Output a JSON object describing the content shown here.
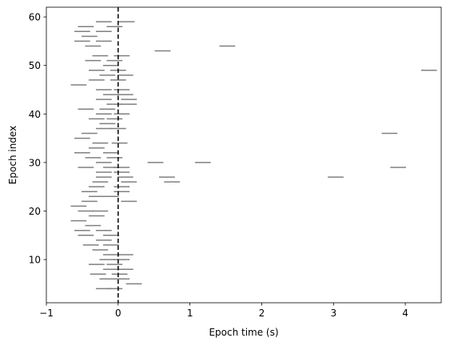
{
  "chart_data": {
    "type": "scatter",
    "marker": "horizontal-segment",
    "xlabel": "Epoch time (s)",
    "ylabel": "Epoch index",
    "xlim": [
      -1,
      4.5
    ],
    "ylim": [
      1.1,
      62
    ],
    "xticks": [
      -1,
      0,
      1,
      2,
      3,
      4
    ],
    "yticks": [
      10,
      20,
      30,
      40,
      50,
      60
    ],
    "grid": false,
    "reference_line": {
      "x": 0,
      "style": "dashed",
      "color": "#000000"
    },
    "segment_color": "#808080",
    "segment_half_width": 0.11,
    "series": [
      {
        "values": [
          {
            "x": -0.2,
            "y": 4
          },
          {
            "x": -0.05,
            "y": 4
          },
          {
            "x": 0.22,
            "y": 5
          },
          {
            "x": -0.15,
            "y": 6
          },
          {
            "x": 0.05,
            "y": 6
          },
          {
            "x": -0.28,
            "y": 7
          },
          {
            "x": 0.02,
            "y": 7
          },
          {
            "x": -0.1,
            "y": 8
          },
          {
            "x": 0.1,
            "y": 8
          },
          {
            "x": -0.3,
            "y": 9
          },
          {
            "x": -0.05,
            "y": 9
          },
          {
            "x": -0.15,
            "y": 10
          },
          {
            "x": 0.05,
            "y": 10
          },
          {
            "x": -0.1,
            "y": 11
          },
          {
            "x": 0.1,
            "y": 11
          },
          {
            "x": -0.25,
            "y": 12
          },
          {
            "x": -0.38,
            "y": 13
          },
          {
            "x": -0.1,
            "y": 13
          },
          {
            "x": -0.2,
            "y": 14
          },
          {
            "x": -0.45,
            "y": 15
          },
          {
            "x": -0.1,
            "y": 15
          },
          {
            "x": -0.5,
            "y": 16
          },
          {
            "x": -0.2,
            "y": 16
          },
          {
            "x": -0.35,
            "y": 17
          },
          {
            "x": -0.55,
            "y": 18
          },
          {
            "x": -0.3,
            "y": 19
          },
          {
            "x": -0.45,
            "y": 20
          },
          {
            "x": -0.25,
            "y": 20
          },
          {
            "x": -0.55,
            "y": 21
          },
          {
            "x": -0.4,
            "y": 22
          },
          {
            "x": 0.15,
            "y": 22
          },
          {
            "x": -0.3,
            "y": 23
          },
          {
            "x": -0.1,
            "y": 23
          },
          {
            "x": -0.4,
            "y": 24
          },
          {
            "x": 0.05,
            "y": 24
          },
          {
            "x": -0.3,
            "y": 25
          },
          {
            "x": 0.05,
            "y": 25
          },
          {
            "x": -0.25,
            "y": 26
          },
          {
            "x": 0.15,
            "y": 26
          },
          {
            "x": 0.75,
            "y": 26
          },
          {
            "x": -0.2,
            "y": 27
          },
          {
            "x": 0.1,
            "y": 27
          },
          {
            "x": 0.68,
            "y": 27
          },
          {
            "x": 3.03,
            "y": 27
          },
          {
            "x": -0.2,
            "y": 28
          },
          {
            "x": 0.05,
            "y": 28
          },
          {
            "x": -0.45,
            "y": 29
          },
          {
            "x": -0.1,
            "y": 29
          },
          {
            "x": 0.05,
            "y": 29
          },
          {
            "x": 3.9,
            "y": 29
          },
          {
            "x": -0.2,
            "y": 30
          },
          {
            "x": 0.52,
            "y": 30
          },
          {
            "x": 1.18,
            "y": 30
          },
          {
            "x": -0.35,
            "y": 31
          },
          {
            "x": -0.05,
            "y": 31
          },
          {
            "x": -0.5,
            "y": 32
          },
          {
            "x": -0.1,
            "y": 32
          },
          {
            "x": -0.3,
            "y": 33
          },
          {
            "x": -0.25,
            "y": 34
          },
          {
            "x": 0.02,
            "y": 34
          },
          {
            "x": -0.5,
            "y": 35
          },
          {
            "x": -0.4,
            "y": 36
          },
          {
            "x": 3.78,
            "y": 36
          },
          {
            "x": -0.2,
            "y": 37
          },
          {
            "x": 0.0,
            "y": 37
          },
          {
            "x": -0.15,
            "y": 38
          },
          {
            "x": -0.3,
            "y": 39
          },
          {
            "x": -0.05,
            "y": 39
          },
          {
            "x": -0.2,
            "y": 40
          },
          {
            "x": 0.05,
            "y": 40
          },
          {
            "x": -0.45,
            "y": 41
          },
          {
            "x": -0.15,
            "y": 41
          },
          {
            "x": -0.05,
            "y": 42
          },
          {
            "x": 0.15,
            "y": 42
          },
          {
            "x": -0.2,
            "y": 43
          },
          {
            "x": 0.15,
            "y": 43
          },
          {
            "x": -0.1,
            "y": 44
          },
          {
            "x": 0.1,
            "y": 44
          },
          {
            "x": -0.2,
            "y": 45
          },
          {
            "x": 0.05,
            "y": 45
          },
          {
            "x": -0.55,
            "y": 46
          },
          {
            "x": -0.3,
            "y": 47
          },
          {
            "x": 0.0,
            "y": 47
          },
          {
            "x": -0.15,
            "y": 48
          },
          {
            "x": 0.1,
            "y": 48
          },
          {
            "x": -0.3,
            "y": 49
          },
          {
            "x": 0.0,
            "y": 49
          },
          {
            "x": 4.33,
            "y": 49
          },
          {
            "x": -0.1,
            "y": 50
          },
          {
            "x": -0.35,
            "y": 51
          },
          {
            "x": -0.05,
            "y": 51
          },
          {
            "x": -0.25,
            "y": 52
          },
          {
            "x": 0.05,
            "y": 52
          },
          {
            "x": 0.62,
            "y": 53
          },
          {
            "x": -0.35,
            "y": 54
          },
          {
            "x": 1.52,
            "y": 54
          },
          {
            "x": -0.5,
            "y": 55
          },
          {
            "x": -0.2,
            "y": 55
          },
          {
            "x": -0.4,
            "y": 56
          },
          {
            "x": -0.5,
            "y": 57
          },
          {
            "x": -0.2,
            "y": 57
          },
          {
            "x": -0.45,
            "y": 58
          },
          {
            "x": -0.05,
            "y": 58
          },
          {
            "x": -0.2,
            "y": 59
          },
          {
            "x": 0.12,
            "y": 59
          }
        ]
      }
    ]
  }
}
